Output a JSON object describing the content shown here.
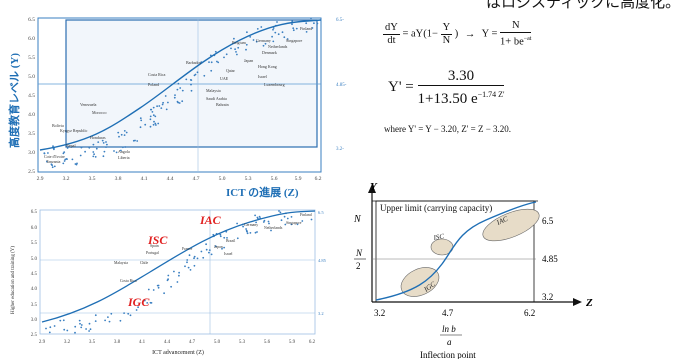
{
  "header_fragment": "はロジスティックに高度化。",
  "top_chart": {
    "ylabel": "高度教育レベル (Y)",
    "xlabel": "ICT の進展 (Z)",
    "xticks": [
      "2.9",
      "3.2",
      "3.5",
      "3.8",
      "4.1",
      "4.4",
      "4.7",
      "5.0",
      "5.3",
      "5.6",
      "5.9",
      "6.2"
    ],
    "yticks": [
      "2.5",
      "3.0",
      "3.5",
      "4.0",
      "4.5",
      "5.0",
      "5.5",
      "6.0",
      "6.5"
    ],
    "right_ticks": [
      "6.5-",
      "4.85-",
      "3.2-"
    ],
    "countries": [
      "Finland",
      "Singapore",
      "Belgium",
      "Germany",
      "Netherlands",
      "Denmark",
      "Japan",
      "Hong Kong",
      "Israel",
      "Luxembourg",
      "Qatar",
      "UAE",
      "Barbados",
      "Costa Rica",
      "Poland",
      "Malaysia",
      "Saudi Arabia",
      "Bahrain",
      "Bolivia",
      "Kyrgyz Republic",
      "Honduras",
      "Nepal",
      "Cote d'Ivoire",
      "Tanzania",
      "Liberia",
      "Angola",
      "Venezuela",
      "Morocco"
    ]
  },
  "formula": {
    "lhs_num": "dY",
    "lhs_den": "dt",
    "mid_a": "= aY(1−",
    "mid_num": "Y",
    "mid_den": "N",
    "mid_b": ")",
    "arrow": "→",
    "rhs_y": "Y =",
    "rhs_num": "N",
    "rhs_den": "1+ be",
    "rhs_exp": "−at",
    "big_lhs": "Y' =",
    "big_num": "3.30",
    "big_den": "1+13.50 e",
    "big_exp": "−1.74 Z'",
    "where": "where  Y' = Y − 3.20,  Z' = Z − 3.20."
  },
  "bottom_chart": {
    "ylabel": "Higher education and training (Y)",
    "xlabel": "ICT advancement (Z)",
    "xticks": [
      "2.9",
      "3.2",
      "3.5",
      "3.8",
      "4.1",
      "4.4",
      "4.7",
      "5.0",
      "5.3",
      "5.6",
      "5.9",
      "6.2"
    ],
    "yticks": [
      "2.5",
      "3.0",
      "3.5",
      "4.0",
      "4.5",
      "5.0",
      "5.5",
      "6.0",
      "6.5"
    ],
    "right_ticks": [
      "6.5",
      "4.85",
      "3.2"
    ],
    "labels": {
      "iac": "IAC",
      "isc": "ISC",
      "igc": "IGC"
    },
    "countries": [
      "Finland",
      "Germany",
      "Netherlands",
      "Singapore",
      "Spain",
      "Portugal",
      "Israel",
      "Brazil",
      "Japan",
      "France",
      "Chile",
      "Malaysia",
      "Costa Rica"
    ]
  },
  "diagram": {
    "y_axis": "Y",
    "z_axis": "Z",
    "n_label": "N",
    "n_half_num": "N",
    "n_half_den": "2",
    "upper_limit": "Upper limit (carrying capacity)",
    "y_vals": [
      "6.5",
      "4.85",
      "3.2"
    ],
    "z_vals": [
      "3.2",
      "4.7",
      "6.2"
    ],
    "labels": {
      "iac": "IAC",
      "isc": "ISC",
      "igc": "IGC"
    },
    "inflection_num": "ln b",
    "inflection_den": "a",
    "inflection_label": "Inflection point"
  },
  "colors": {
    "frame_blue": "#3a7fc1",
    "grid_blue": "#5b9bd5",
    "accent_red": "#e02020",
    "curve_blue": "#1f6fb5",
    "fill_light": "#f2f6fb",
    "ellipse_fill": "#e7dcc8"
  }
}
